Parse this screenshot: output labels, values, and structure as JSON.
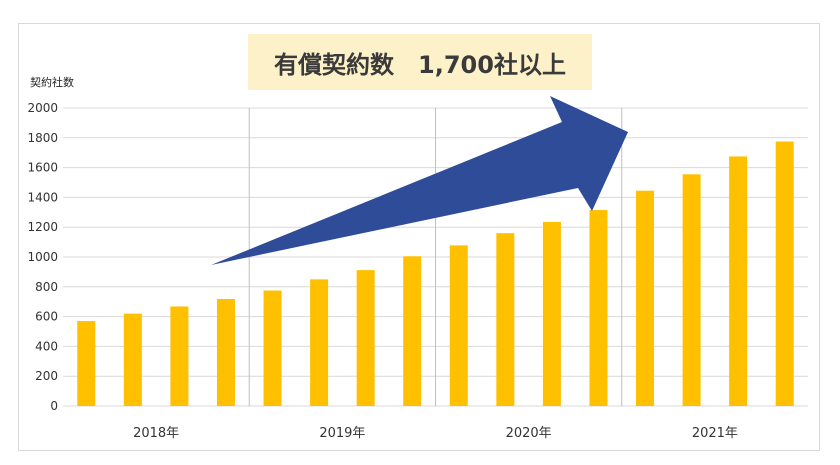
{
  "headline": "有償契約数　1,700社以上",
  "colors": {
    "bar": "#FFC000",
    "arrow": "#2F4C99",
    "grid": "#D9D9D9",
    "headline_bg": "#FDF1C9"
  },
  "chart_data": {
    "type": "bar",
    "title": "",
    "xlabel": "",
    "ylabel": "契約社数",
    "ylim": [
      0,
      2000
    ],
    "yticks": [
      0,
      200,
      400,
      600,
      800,
      1000,
      1200,
      1400,
      1600,
      1800,
      2000
    ],
    "groups": [
      "2018年",
      "2019年",
      "2020年",
      "2021年"
    ],
    "bars_per_group": 4,
    "values": [
      570,
      620,
      668,
      718,
      775,
      850,
      912,
      1005,
      1078,
      1160,
      1235,
      1315,
      1445,
      1555,
      1675,
      1775
    ],
    "grid": true,
    "legend": "none",
    "annotation": "upward trend arrow"
  }
}
